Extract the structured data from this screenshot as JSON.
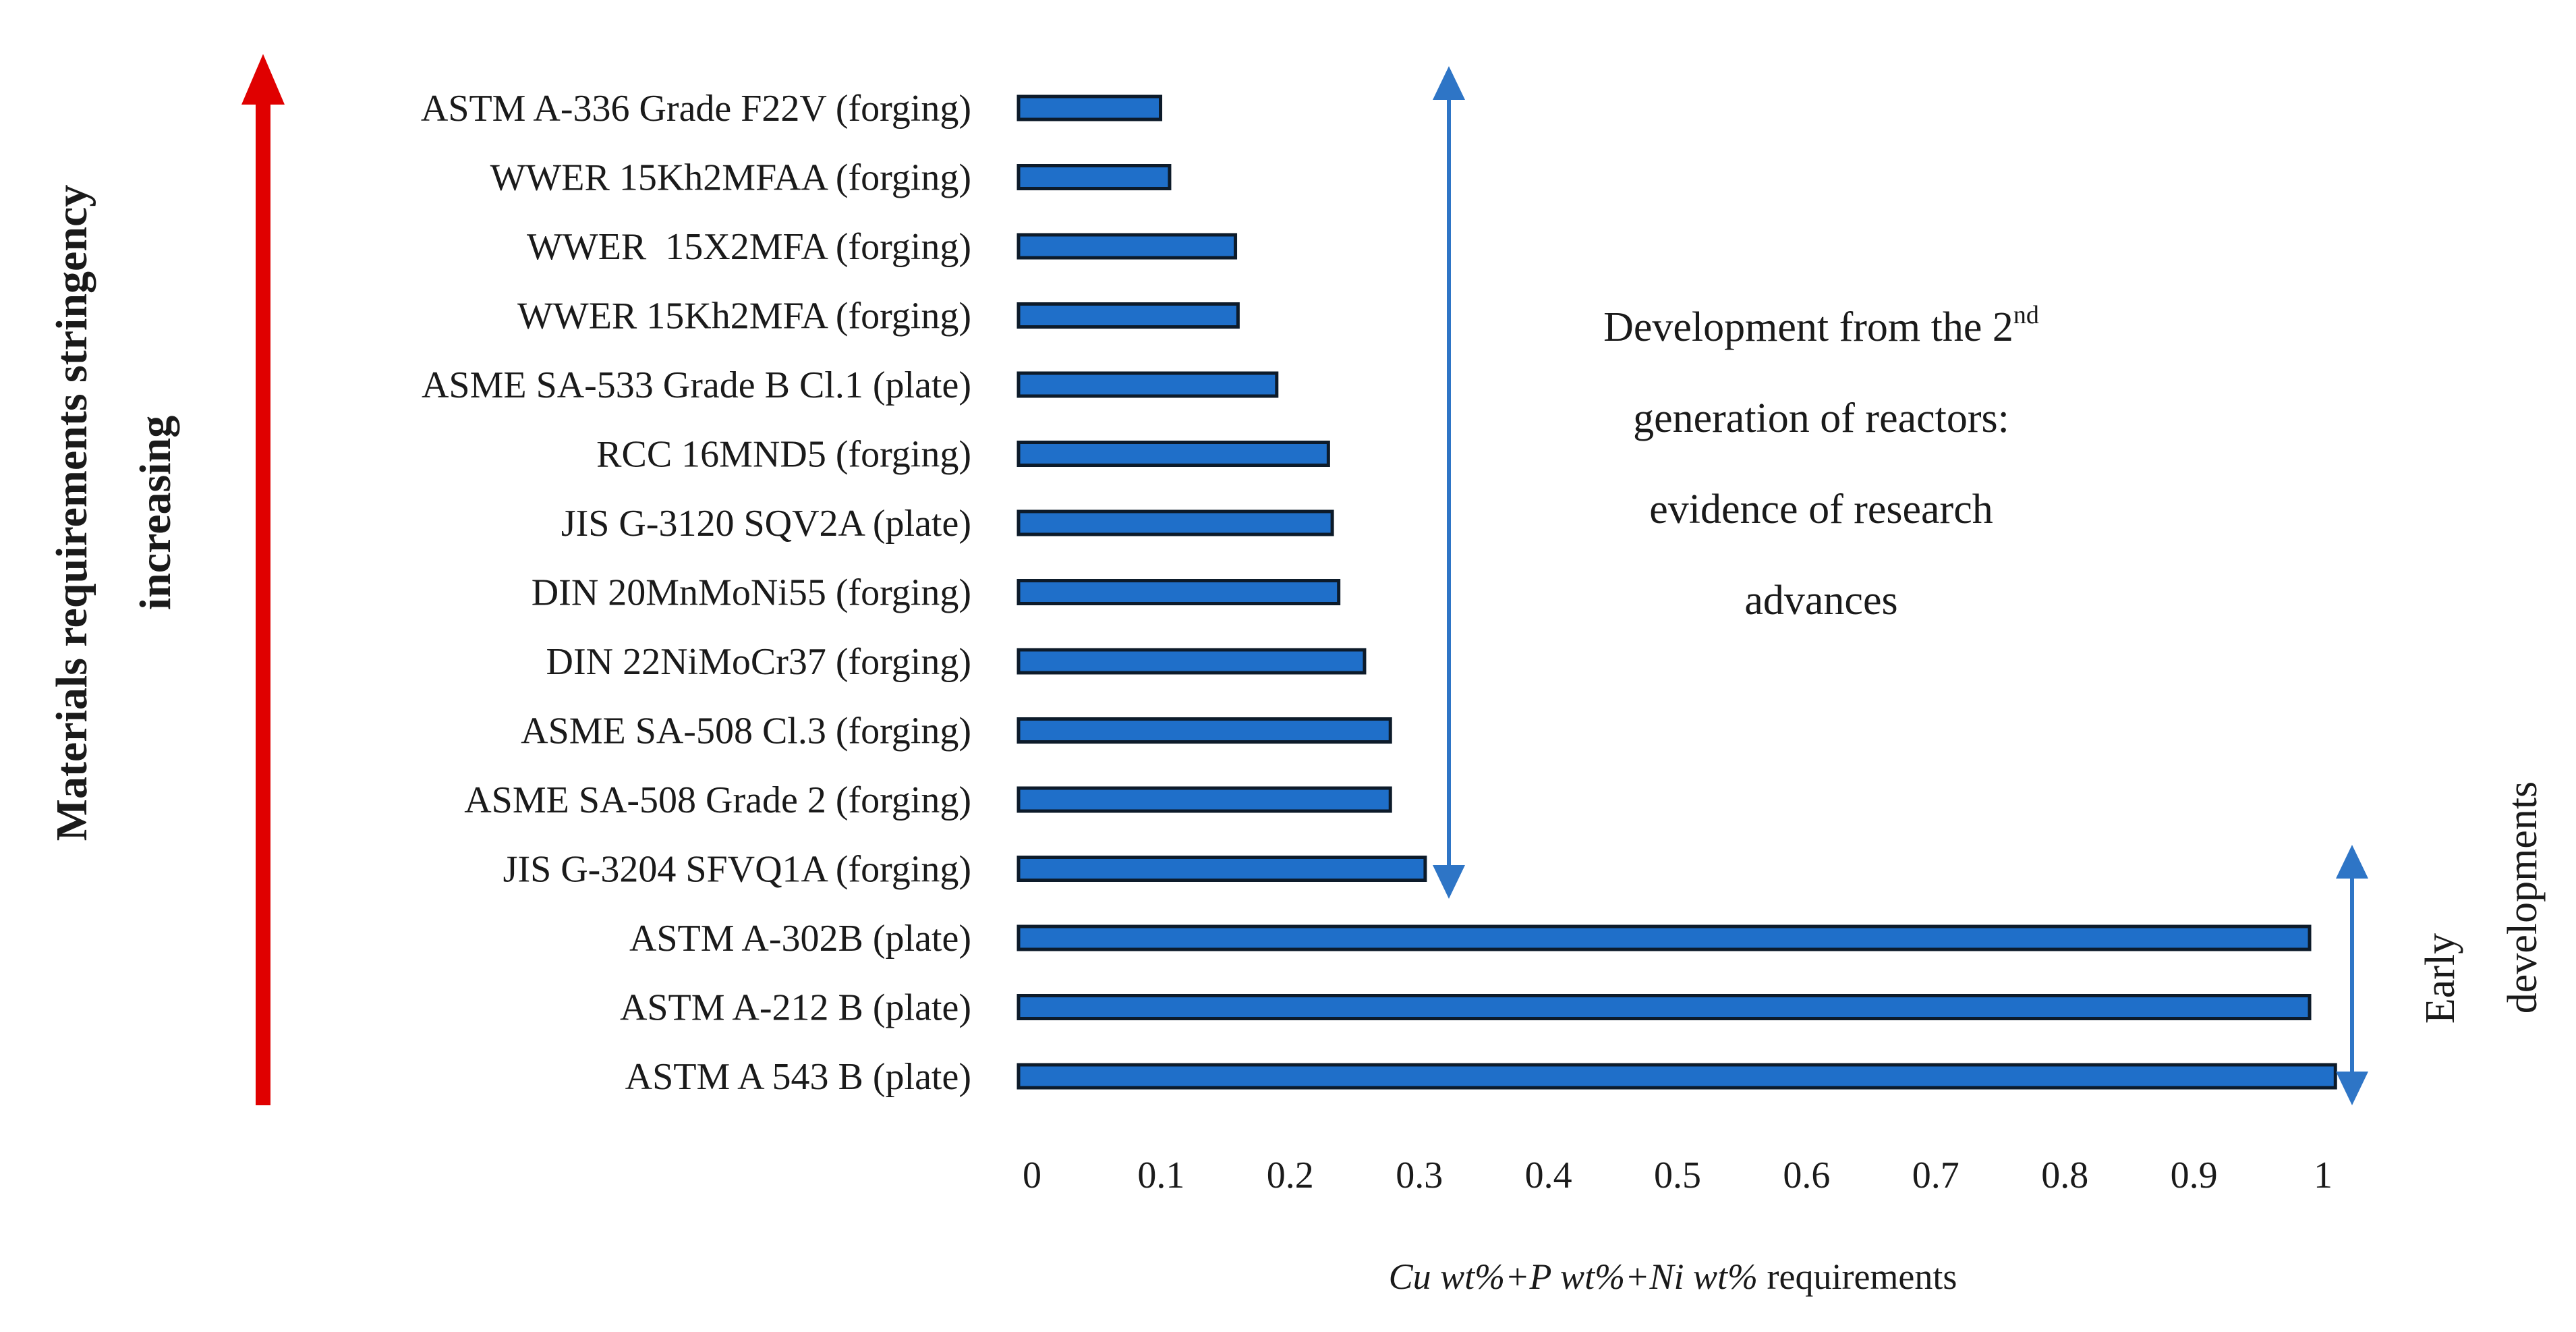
{
  "chart_data": {
    "type": "bar",
    "orientation": "horizontal",
    "title": "",
    "categories": [
      "ASTM A-336 Grade F22V (forging)",
      "WWER 15Kh2MFAA (forging)",
      "WWER  15X2MFA (forging)",
      "WWER 15Kh2MFA (forging)",
      "ASME SA-533 Grade B Cl.1 (plate)",
      "RCC 16MND5 (forging)",
      "JIS G-3120 SQV2A (plate)",
      "DIN 20MnMoNi55 (forging)",
      "DIN 22NiMoCr37 (forging)",
      "ASME SA-508 Cl.3 (forging)",
      "ASME SA-508 Grade 2 (forging)",
      "JIS G-3204 SFVQ1A (forging)",
      "ASTM A-302B (plate)",
      "ASTM A-212 B (plate)",
      "ASTM A 543 B (plate)"
    ],
    "values": [
      0.11,
      0.117,
      0.168,
      0.17,
      0.2,
      0.24,
      0.243,
      0.248,
      0.268,
      0.288,
      0.288,
      0.315,
      1.0,
      1.0,
      1.02
    ],
    "xlim": [
      0,
      1
    ],
    "xticks": [
      "0",
      "0.1",
      "0.2",
      "0.3",
      "0.4",
      "0.5",
      "0.6",
      "0.7",
      "0.8",
      "0.9",
      "1"
    ],
    "xlabel_parts": {
      "italic": "Cu wt%+P wt%+Ni wt%",
      "regular": " requirements"
    },
    "ylabel_lines": [
      "Materials requirements stringency",
      "increasing"
    ],
    "grid": false,
    "colors": {
      "bar": "#1f6fc9",
      "bar_edge": "#0d1b2a",
      "arrow_red": "#e00000",
      "arrow_blue": "#2e75c6"
    },
    "annotations": {
      "development": {
        "line1_main": "Development from the 2",
        "line1_sup": "nd",
        "line2": "generation of reactors:",
        "line3": "evidence of research",
        "line4": "advances"
      },
      "early": {
        "line1": "Early",
        "line2": "developments"
      }
    }
  }
}
